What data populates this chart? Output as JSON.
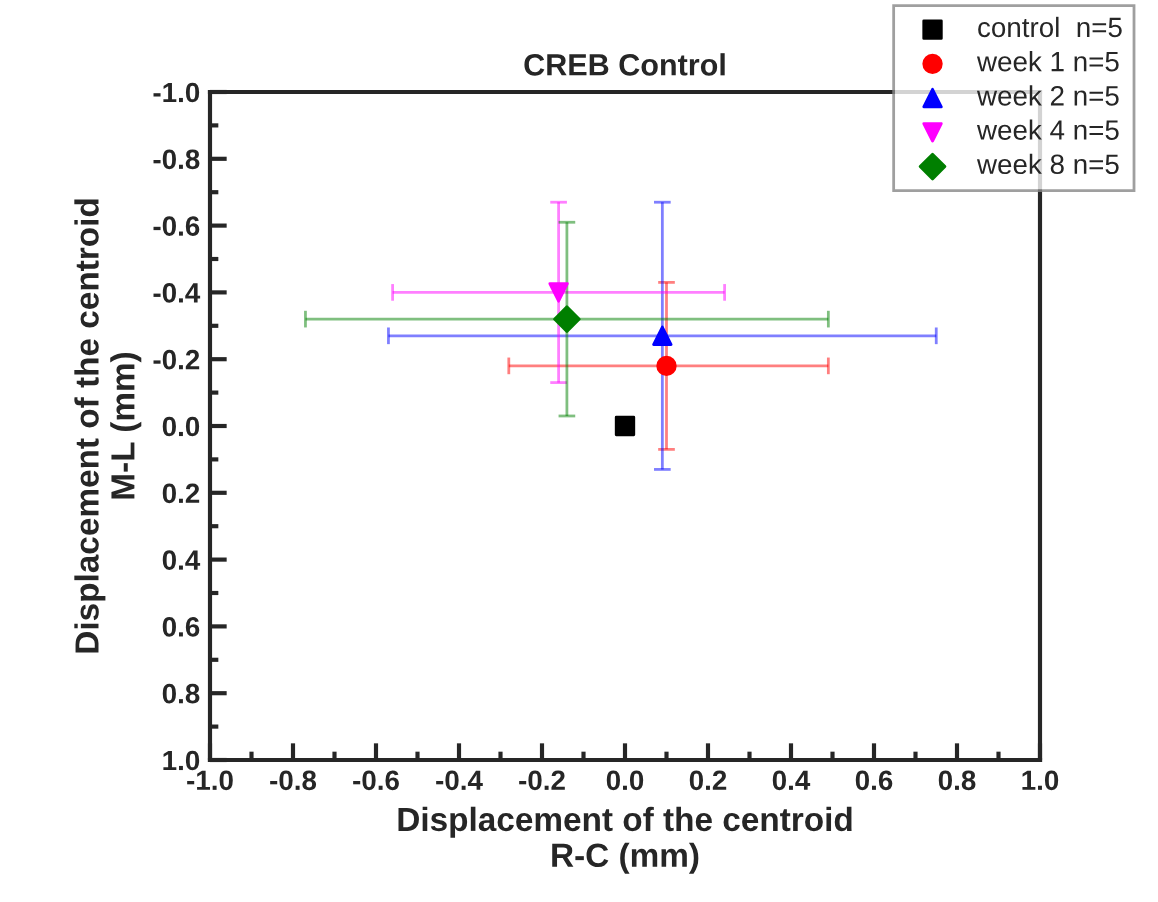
{
  "chart_data": {
    "type": "scatter",
    "title": "CREB Control",
    "xlabel": "Displacement of the centroid\nR-C (mm)",
    "ylabel": "Displacement of the centroid\nM-L (mm)",
    "xlim": [
      -1.0,
      1.0
    ],
    "xticks": [
      {
        "value": -1,
        "label": "-1.0"
      },
      -0.8,
      -0.6,
      -0.4,
      -0.2,
      {
        "value": 0,
        "label": "0.0"
      },
      0.2,
      0.4,
      0.6,
      0.8,
      {
        "value": 1,
        "label": "1.0"
      }
    ],
    "ylim": [
      1.0,
      -1.0
    ],
    "yticks": [
      {
        "value": -1,
        "label": "-1.0"
      },
      -0.8,
      -0.6,
      -0.4,
      -0.2,
      {
        "value": 0,
        "label": "0.0"
      },
      0.2,
      0.4,
      0.6,
      0.8,
      {
        "value": 1,
        "label": "1.0"
      }
    ],
    "grid": false,
    "legend": "top right",
    "series": [
      {
        "name": "control  n=5",
        "color": "#000000",
        "marker": "square",
        "x": [
          0.0
        ],
        "values": [
          0.0
        ]
      },
      {
        "name": "week 1 n=5",
        "color": "#ff0000",
        "marker": "circle",
        "x": [
          0.1
        ],
        "values": [
          -0.18
        ],
        "errors": [
          [
            -0.43,
            0.07
          ]
        ],
        "xerrors": [
          [
            -0.28,
            0.49
          ]
        ]
      },
      {
        "name": "week 2 n=5",
        "color": "#0000ff",
        "marker": "triangle",
        "x": [
          0.09
        ],
        "values": [
          -0.27
        ],
        "errors": [
          [
            -0.67,
            0.13
          ]
        ],
        "xerrors": [
          [
            -0.57,
            0.75
          ]
        ]
      },
      {
        "name": "week 4 n=5",
        "color": "#ff00ff",
        "marker": "triangle_down",
        "x": [
          -0.16
        ],
        "values": [
          -0.4
        ],
        "errors": [
          [
            -0.67,
            -0.13
          ]
        ],
        "xerrors": [
          [
            -0.56,
            0.24
          ]
        ]
      },
      {
        "name": "week 8 n=5",
        "color": "#007f00",
        "marker": "diamond",
        "x": [
          -0.14
        ],
        "values": [
          -0.32
        ],
        "errors": [
          [
            -0.61,
            -0.03
          ]
        ],
        "xerrors": [
          [
            -0.77,
            0.49
          ]
        ]
      }
    ]
  }
}
